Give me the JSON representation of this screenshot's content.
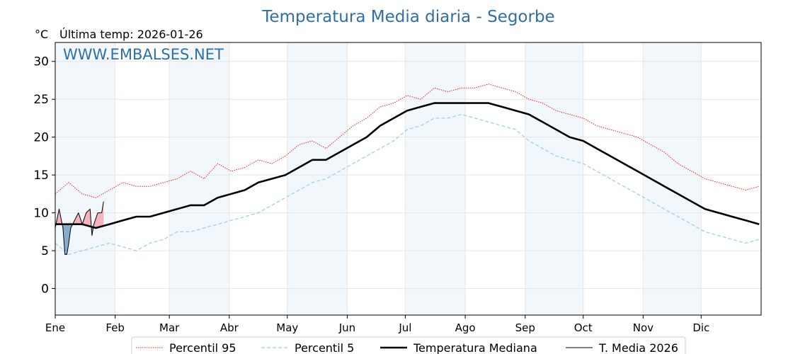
{
  "chart_data": {
    "type": "line",
    "title": "Temperatura Media diaria - Segorbe",
    "unit_label": "°C",
    "last_temp_label": "Última temp: 2026-01-26",
    "watermark": "WWW.EMBALSES.NET",
    "xlabel": "",
    "ylabel": "",
    "ylim": [
      -3.5,
      32.5
    ],
    "yticks": [
      0,
      5,
      10,
      15,
      20,
      25,
      30
    ],
    "month_labels": [
      "Ene",
      "Feb",
      "Mar",
      "Abr",
      "May",
      "Jun",
      "Jul",
      "Ago",
      "Sep",
      "Oct",
      "Nov",
      "Dic"
    ],
    "month_start_day": [
      1,
      32,
      60,
      91,
      121,
      152,
      182,
      213,
      244,
      274,
      305,
      335
    ],
    "xlim": [
      1,
      366
    ],
    "grid": true,
    "legend_position": "bottom",
    "series": [
      {
        "name": "Percentil 95",
        "color": "#e8261f",
        "style": "dotted",
        "x": [
          1,
          8,
          15,
          22,
          29,
          36,
          43,
          50,
          57,
          64,
          71,
          78,
          85,
          92,
          99,
          106,
          113,
          120,
          127,
          134,
          141,
          148,
          155,
          162,
          169,
          176,
          183,
          190,
          197,
          204,
          211,
          218,
          225,
          232,
          239,
          246,
          253,
          260,
          267,
          274,
          281,
          288,
          295,
          302,
          309,
          316,
          323,
          330,
          337,
          344,
          351,
          358,
          365
        ],
        "y": [
          12.5,
          14.0,
          12.5,
          12.0,
          13.0,
          14.0,
          13.5,
          13.5,
          14.0,
          14.5,
          15.5,
          14.5,
          16.5,
          15.5,
          16.0,
          17.0,
          16.5,
          17.5,
          19.0,
          19.5,
          18.5,
          20.0,
          21.5,
          22.5,
          24.0,
          24.5,
          25.5,
          25.0,
          26.5,
          26.0,
          26.5,
          26.5,
          27.0,
          26.5,
          26.0,
          25.0,
          24.5,
          23.5,
          23.0,
          22.5,
          21.5,
          21.0,
          20.5,
          20.0,
          19.0,
          18.0,
          16.5,
          15.5,
          14.5,
          14.0,
          13.5,
          13.0,
          13.5
        ]
      },
      {
        "name": "Percentil 5",
        "color": "#9fd0e6",
        "style": "dashed",
        "x": [
          1,
          8,
          15,
          22,
          29,
          36,
          43,
          50,
          57,
          64,
          71,
          78,
          85,
          92,
          99,
          106,
          113,
          120,
          127,
          134,
          141,
          148,
          155,
          162,
          169,
          176,
          183,
          190,
          197,
          204,
          211,
          218,
          225,
          232,
          239,
          246,
          253,
          260,
          267,
          274,
          281,
          288,
          295,
          302,
          309,
          316,
          323,
          330,
          337,
          344,
          351,
          358,
          365
        ],
        "y": [
          6.0,
          4.5,
          5.0,
          5.5,
          6.0,
          5.5,
          5.0,
          6.0,
          6.5,
          7.5,
          7.5,
          8.0,
          8.5,
          9.0,
          9.5,
          10.0,
          11.0,
          12.0,
          13.0,
          14.0,
          14.5,
          15.5,
          16.5,
          17.5,
          18.5,
          19.5,
          21.0,
          21.5,
          22.5,
          22.5,
          23.0,
          22.5,
          22.0,
          21.5,
          21.0,
          19.5,
          18.5,
          17.5,
          17.0,
          16.5,
          15.5,
          14.5,
          13.5,
          12.5,
          11.5,
          10.5,
          9.5,
          8.5,
          7.5,
          7.0,
          6.5,
          6.0,
          6.5
        ]
      },
      {
        "name": "Temperatura Mediana",
        "color": "#000000",
        "style": "thick",
        "x": [
          1,
          8,
          15,
          22,
          29,
          36,
          43,
          50,
          57,
          64,
          71,
          78,
          85,
          92,
          99,
          106,
          113,
          120,
          127,
          134,
          141,
          148,
          155,
          162,
          169,
          176,
          183,
          190,
          197,
          204,
          211,
          218,
          225,
          232,
          239,
          246,
          253,
          260,
          267,
          274,
          281,
          288,
          295,
          302,
          309,
          316,
          323,
          330,
          337,
          344,
          351,
          358,
          365
        ],
        "y": [
          8.5,
          8.5,
          8.5,
          8.0,
          8.5,
          9.0,
          9.5,
          9.5,
          10.0,
          10.5,
          11.0,
          11.0,
          12.0,
          12.5,
          13.0,
          14.0,
          14.5,
          15.0,
          16.0,
          17.0,
          17.0,
          18.0,
          19.0,
          20.0,
          21.5,
          22.5,
          23.5,
          24.0,
          24.5,
          24.5,
          24.5,
          24.5,
          24.5,
          24.0,
          23.5,
          23.0,
          22.0,
          21.0,
          20.0,
          19.5,
          18.5,
          17.5,
          16.5,
          15.5,
          14.5,
          13.5,
          12.5,
          11.5,
          10.5,
          10.0,
          9.5,
          9.0,
          8.5
        ]
      },
      {
        "name": "T. Media 2026",
        "color": "#000000",
        "style": "thin",
        "x": [
          1,
          3,
          5,
          6,
          7,
          8,
          9,
          11,
          13,
          15,
          17,
          19,
          20,
          21,
          23,
          25,
          26
        ],
        "y": [
          8.0,
          10.5,
          8.0,
          4.5,
          4.5,
          6.0,
          8.0,
          9.0,
          10.0,
          8.5,
          10.0,
          10.5,
          7.0,
          8.5,
          10.0,
          10.0,
          11.5
        ]
      }
    ]
  }
}
